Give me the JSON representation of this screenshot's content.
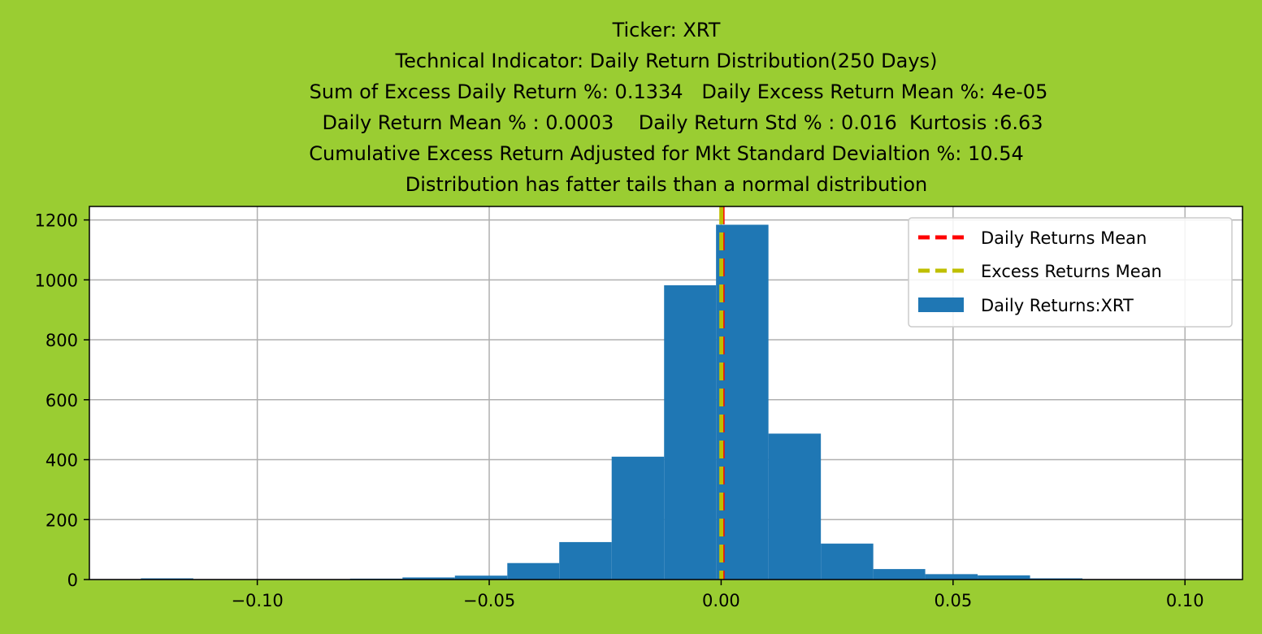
{
  "chart_data": {
    "type": "bar",
    "title_lines": [
      "Ticker: XRT",
      "Technical Indicator: Daily Return Distribution(250 Days)",
      "Sum of Excess Daily Return %: 0.1334   Daily Excess Return Mean %: 4e-05",
      "Daily Return Mean % : 0.0003    Daily Return Std % : 0.016  Kurtosis :6.63",
      "Cumulative Excess Return Adjusted for Mkt Standard Devialtion %: 10.54",
      "Distribution has fatter tails than a normal distribution"
    ],
    "xlabel": "",
    "ylabel": "",
    "xlim": [
      -0.1362,
      0.1124
    ],
    "ylim": [
      0,
      1245
    ],
    "x_ticks": [
      -0.1,
      -0.05,
      0.0,
      0.05,
      0.1
    ],
    "x_tick_labels": [
      "−0.10",
      "−0.05",
      "0.00",
      "0.05",
      "0.10"
    ],
    "y_ticks": [
      0,
      200,
      400,
      600,
      800,
      1000,
      1200
    ],
    "y_tick_labels": [
      "0",
      "200",
      "400",
      "600",
      "800",
      "1000",
      "1200"
    ],
    "grid": true,
    "legend_position": "top-right",
    "bin_edges": [
      -0.1251,
      -0.1138,
      -0.1025,
      -0.0912,
      -0.08,
      -0.0687,
      -0.0574,
      -0.0461,
      -0.0349,
      -0.0236,
      -0.0123,
      -0.0011,
      0.0102,
      0.0215,
      0.0328,
      0.044,
      0.0553,
      0.0666,
      0.0779,
      0.0891,
      0.1004
    ],
    "counts": [
      4,
      1,
      1,
      1,
      3,
      7,
      13,
      55,
      125,
      410,
      982,
      1184,
      487,
      120,
      35,
      18,
      14,
      4,
      1,
      1
    ],
    "series": [
      {
        "name": "Daily Returns:XRT",
        "type": "histogram",
        "color": "#1f77b4"
      },
      {
        "name": "Daily Returns Mean",
        "type": "vline",
        "x": 0.0003,
        "color": "#ff0000",
        "style": "dashed"
      },
      {
        "name": "Excess Returns Mean",
        "type": "vline",
        "x": 4e-05,
        "color": "#bfbf00",
        "style": "dashed"
      }
    ]
  }
}
